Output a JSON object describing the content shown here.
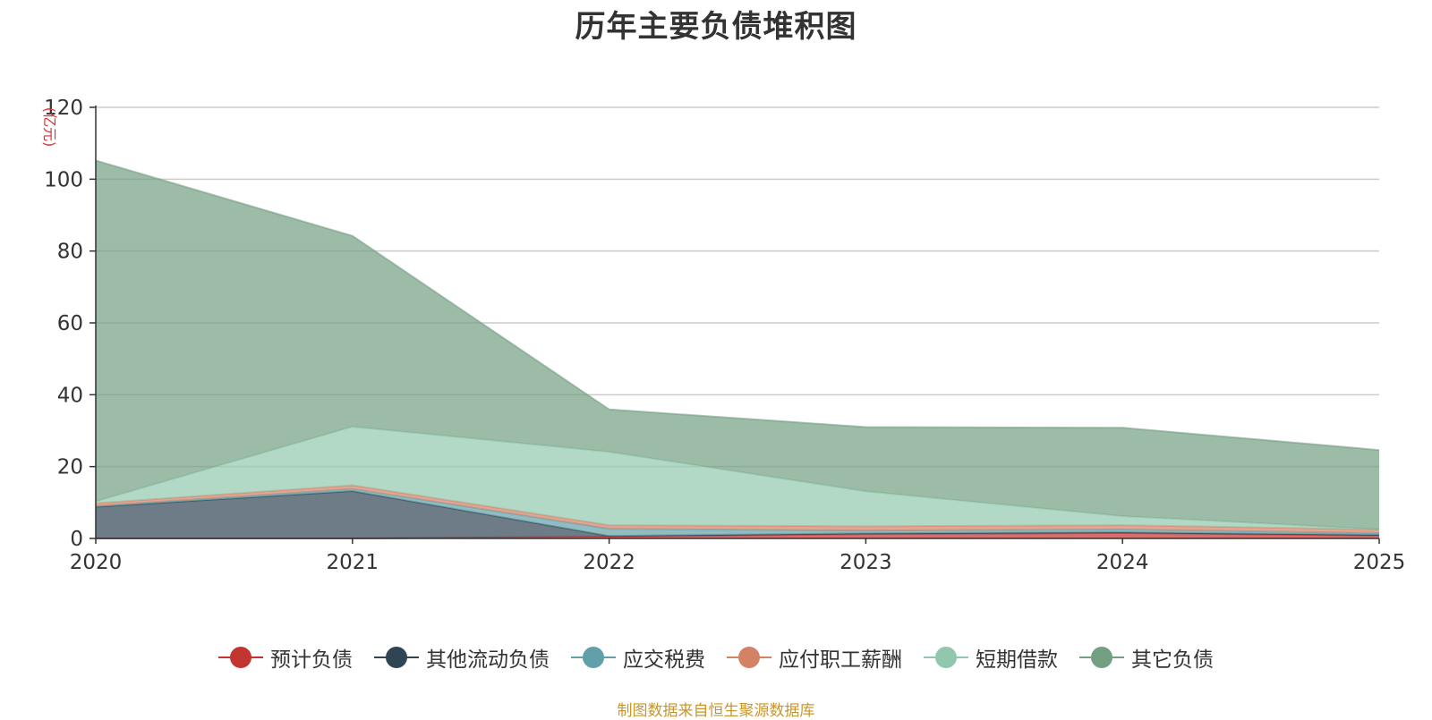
{
  "chart_data": {
    "type": "area",
    "stacked": true,
    "title": "历年主要负债堆积图",
    "ylabel": "(亿元)",
    "xlabel": "",
    "categories": [
      "2020",
      "2021",
      "2022",
      "2023",
      "2024",
      "2025"
    ],
    "ylim": [
      0,
      120
    ],
    "yticks": [
      "0",
      "20",
      "40",
      "60",
      "80",
      "100",
      "120"
    ],
    "grid": true,
    "legend_position": "bottom-center",
    "series": [
      {
        "name": "预计负债",
        "color": "#c23531",
        "values": [
          0,
          0,
          0.5,
          1.2,
          1.5,
          0.8
        ]
      },
      {
        "name": "其他流动负债",
        "color": "#2f4554",
        "values": [
          8.8,
          13.2,
          0.2,
          0.2,
          0.2,
          0.2
        ]
      },
      {
        "name": "应交税费",
        "color": "#61a0a8",
        "values": [
          0.2,
          0.6,
          2.0,
          0.8,
          0.8,
          0.5
        ]
      },
      {
        "name": "应付职工薪酬",
        "color": "#d48265",
        "values": [
          0.8,
          1.0,
          1.0,
          1.2,
          1.2,
          1.0
        ]
      },
      {
        "name": "短期借款",
        "color": "#91c7ae",
        "values": [
          0.5,
          16.3,
          20.4,
          9.7,
          2.5,
          0
        ]
      },
      {
        "name": "其它负债",
        "color": "#749f83",
        "values": [
          94.9,
          53.1,
          11.8,
          17.9,
          24.6,
          22.1
        ]
      }
    ]
  },
  "source_note": "制图数据来自恒生聚源数据库"
}
